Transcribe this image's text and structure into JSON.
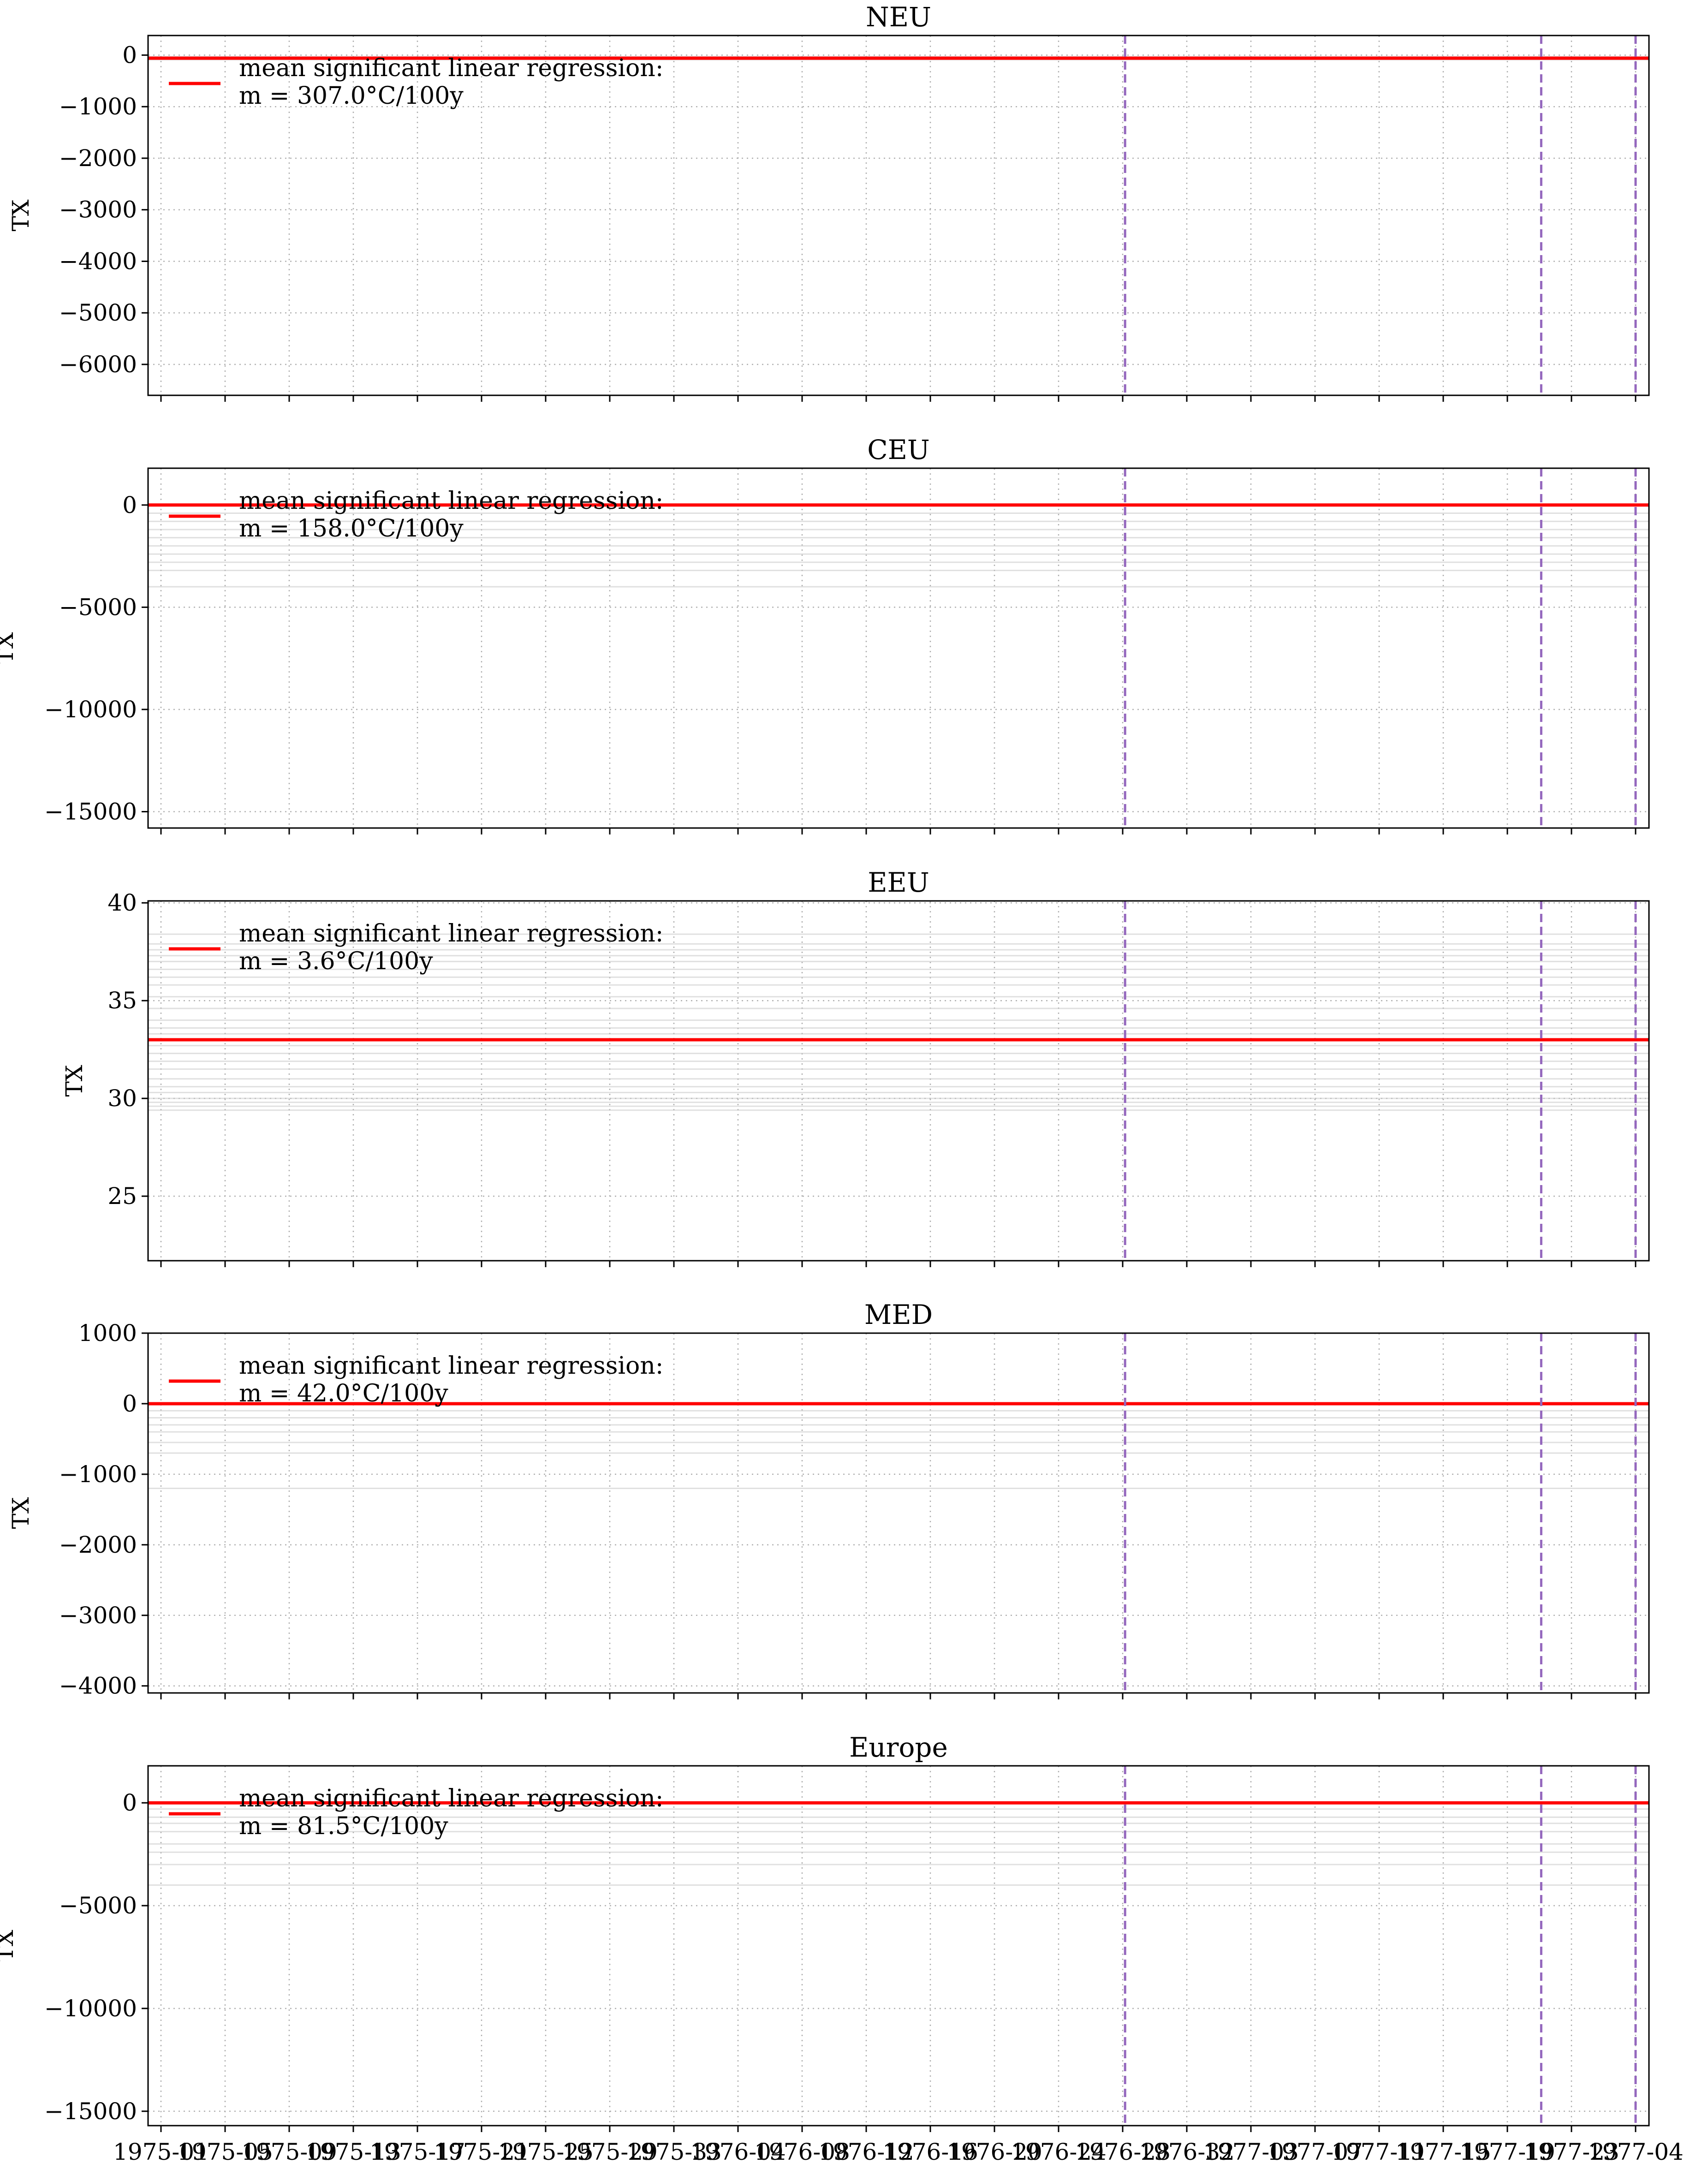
{
  "chart_data": [
    {
      "type": "line",
      "title": "NEU",
      "ylabel": "TX",
      "ylim": [
        -6600,
        380
      ],
      "yticks": [
        0,
        -1000,
        -2000,
        -3000,
        -4000,
        -5000,
        -6000
      ],
      "ytick_labels": [
        "0",
        "−1000",
        "−2000",
        "−3000",
        "−4000",
        "−5000",
        "−6000"
      ],
      "series": [
        {
          "name": "mean significant linear regression:",
          "values": [
            -60,
            -60
          ]
        }
      ],
      "legend": {
        "line1": "mean significant linear regression:",
        "line2": "m = 307.0°C/100y",
        "placement": "top-left"
      },
      "gray_lines": [
        -30,
        -50,
        -70,
        -90
      ],
      "vlines": [
        0.6538,
        0.936,
        1.0
      ]
    },
    {
      "type": "line",
      "title": "CEU",
      "ylabel": "TX",
      "ylim": [
        -15800,
        1800
      ],
      "yticks": [
        0,
        -5000,
        -10000,
        -15000
      ],
      "ytick_labels": [
        "0",
        "−5000",
        "−10000",
        "−15000"
      ],
      "series": [
        {
          "name": "mean significant linear regression:",
          "values": [
            0,
            0
          ]
        }
      ],
      "legend": {
        "line1": "mean significant linear regression:",
        "line2": "m = 158.0°C/100y",
        "placement": "top-left"
      },
      "gray_lines": [
        -400,
        -800,
        -1200,
        -1600,
        -2000,
        -2400,
        -2800,
        -3200,
        -4000
      ],
      "vlines": [
        0.6538,
        0.936,
        1.0
      ]
    },
    {
      "type": "line",
      "title": "EEU",
      "ylabel": "TX",
      "ylim": [
        21.7,
        40.1
      ],
      "yticks": [
        40,
        35,
        30,
        25
      ],
      "ytick_labels": [
        "40",
        "35",
        "30",
        "25"
      ],
      "series": [
        {
          "name": "mean significant linear regression:",
          "values": [
            33.0,
            33.0
          ]
        }
      ],
      "legend": {
        "line1": "mean significant linear regression:",
        "line2": "m = 3.6°C/100y",
        "placement": "top-left"
      },
      "gray_lines": [
        38.4,
        37.9,
        37.6,
        37.3,
        37.0,
        36.6,
        36.2,
        35.8,
        35.2,
        34.6,
        34.0,
        33.6,
        33.3,
        32.7,
        32.3,
        31.9,
        31.5,
        31.0,
        30.6,
        30.3,
        30.0,
        29.8,
        29.6,
        29.4
      ],
      "vlines": [
        0.6538,
        0.936,
        1.0
      ]
    },
    {
      "type": "line",
      "title": "MED",
      "ylabel": "TX",
      "ylim": [
        -4100,
        1000
      ],
      "yticks": [
        1000,
        0,
        -1000,
        -2000,
        -3000,
        -4000
      ],
      "ytick_labels": [
        "1000",
        "0",
        "−1000",
        "−2000",
        "−3000",
        "−4000"
      ],
      "series": [
        {
          "name": "mean significant linear regression:",
          "values": [
            0,
            0
          ]
        }
      ],
      "legend": {
        "line1": "mean significant linear regression:",
        "line2": "m = 42.0°C/100y",
        "placement": "top-left"
      },
      "gray_lines": [
        -100,
        -200,
        -300,
        -400,
        -550,
        -700,
        -1200
      ],
      "vlines": [
        0.6538,
        0.936,
        1.0
      ]
    },
    {
      "type": "line",
      "title": "Europe",
      "ylabel": "TX",
      "ylim": [
        -15700,
        1800
      ],
      "yticks": [
        0,
        -5000,
        -10000,
        -15000
      ],
      "ytick_labels": [
        "0",
        "−5000",
        "−10000",
        "−15000"
      ],
      "series": [
        {
          "name": "mean significant linear regression:",
          "values": [
            0,
            0
          ]
        }
      ],
      "legend": {
        "line1": "mean significant linear regression:",
        "line2": "m = 81.5°C/100y",
        "placement": "top-left"
      },
      "gray_lines": [
        -300,
        -700,
        -1000,
        -1400,
        -2000,
        -2400,
        -3000,
        -4000
      ],
      "vlines": [
        0.6538,
        0.936,
        1.0
      ]
    }
  ],
  "x_axis": {
    "tick_labels": [
      "1975-01",
      "1975-05",
      "1975-09",
      "1975-13",
      "1975-17",
      "1975-21",
      "1975-25",
      "1975-29",
      "1975-33",
      "1976-04",
      "1976-08",
      "1976-12",
      "1976-16",
      "1976-20",
      "1976-24",
      "1976-28",
      "1976-32",
      "1977-03",
      "1977-07",
      "1977-11",
      "1977-15",
      "1977-19",
      "1977-23",
      "1977-04"
    ],
    "shared": true
  },
  "colors": {
    "regression_line": "#ff0000",
    "vline": "#9467bd",
    "gray_line": "#c8c8c8",
    "grid": "#b0b0b0"
  }
}
